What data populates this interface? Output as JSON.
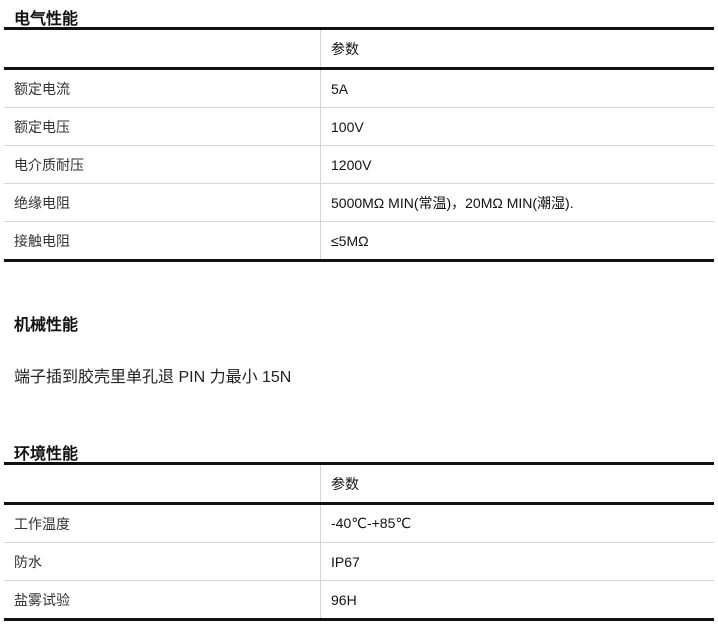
{
  "electrical": {
    "title": "电气性能",
    "header": [
      "",
      "参数"
    ],
    "rows": [
      {
        "name": "额定电流",
        "value": "5A"
      },
      {
        "name": "额定电压",
        "value": "100V"
      },
      {
        "name": "电介质耐压",
        "value": "1200V"
      },
      {
        "name": "绝缘电阻",
        "value": "5000MΩ MIN(常温)，20MΩ MIN(潮湿)."
      },
      {
        "name": "接触电阻",
        "value": "≤5MΩ"
      }
    ]
  },
  "mechanical": {
    "title": "机械性能",
    "text": "端子插到胶壳里单孔退 PIN 力最小 15N"
  },
  "environmental": {
    "title": "环境性能",
    "header": [
      "",
      "参数"
    ],
    "rows": [
      {
        "name": "工作温度",
        "value": "-40℃-+85℃"
      },
      {
        "name": "防水",
        "value": "IP67"
      },
      {
        "name": "盐雾试验",
        "value": "96H"
      }
    ]
  }
}
